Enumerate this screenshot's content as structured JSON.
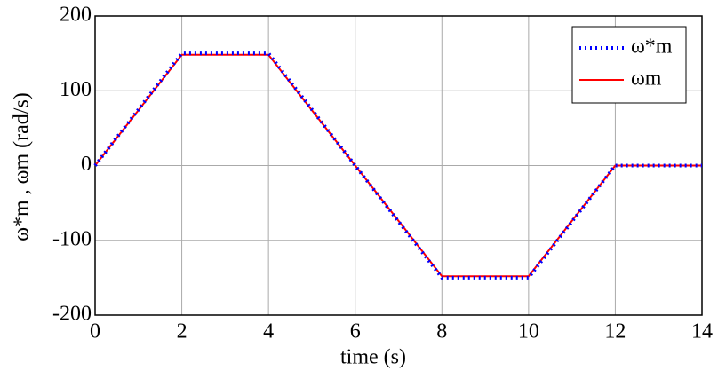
{
  "chart_data": {
    "type": "line",
    "x_label": "time (s)",
    "y_label": "ω*m ,  ωm (rad/s)",
    "x": [
      0,
      2,
      4,
      8,
      10,
      12,
      14
    ],
    "series": [
      {
        "name": "ω*m",
        "color": "#0000ff",
        "style": "dotted",
        "values": [
          0,
          150,
          150,
          -150,
          -150,
          0,
          0
        ]
      },
      {
        "name": "ωm",
        "color": "#ff0000",
        "style": "solid",
        "values": [
          0,
          148,
          148,
          -148,
          -148,
          0,
          0
        ]
      }
    ],
    "xlim": [
      0,
      14
    ],
    "xticks": [
      0,
      2,
      4,
      6,
      8,
      10,
      12,
      14
    ],
    "ylim": [
      -200,
      200
    ],
    "yticks": [
      -200,
      -100,
      0,
      100,
      200
    ],
    "grid": true,
    "legend": "upper-right"
  }
}
